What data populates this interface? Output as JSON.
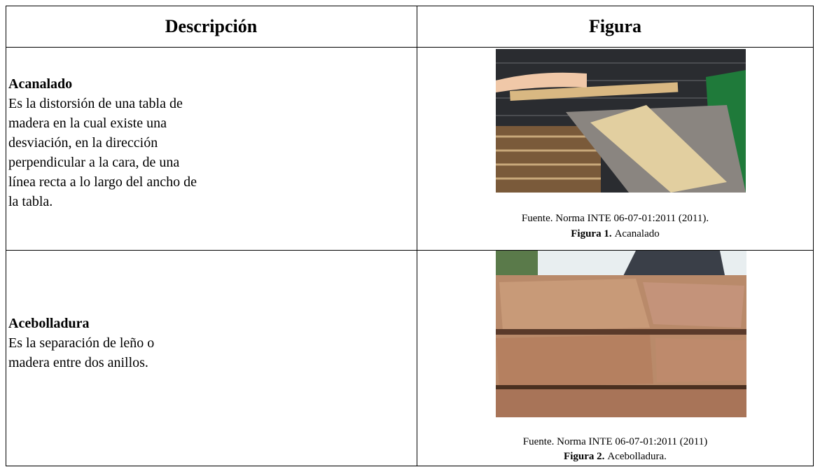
{
  "table": {
    "header": [
      "Descripción",
      "Figura"
    ],
    "rows": [
      {
        "term": "Acanalado",
        "description": [
          "Es la distorsión de una tabla de",
          "madera en la cual existe una",
          "desviación, en la dirección",
          "perpendicular a la cara, de una",
          "línea recta a lo largo del ancho de",
          "la tabla."
        ],
        "source": "Fuente. Norma INTE 06-07-01:2011 (2011).",
        "figure_label": "Figura 1.",
        "figure_caption": "Acanalado"
      },
      {
        "term": "Acebolladura",
        "description": [
          "Es la separación de leño o",
          "madera entre dos anillos."
        ],
        "source": "Fuente. Norma INTE 06-07-01:2011 (2011)",
        "figure_label": "Figura 2.",
        "figure_caption": "Acebolladura."
      }
    ]
  }
}
